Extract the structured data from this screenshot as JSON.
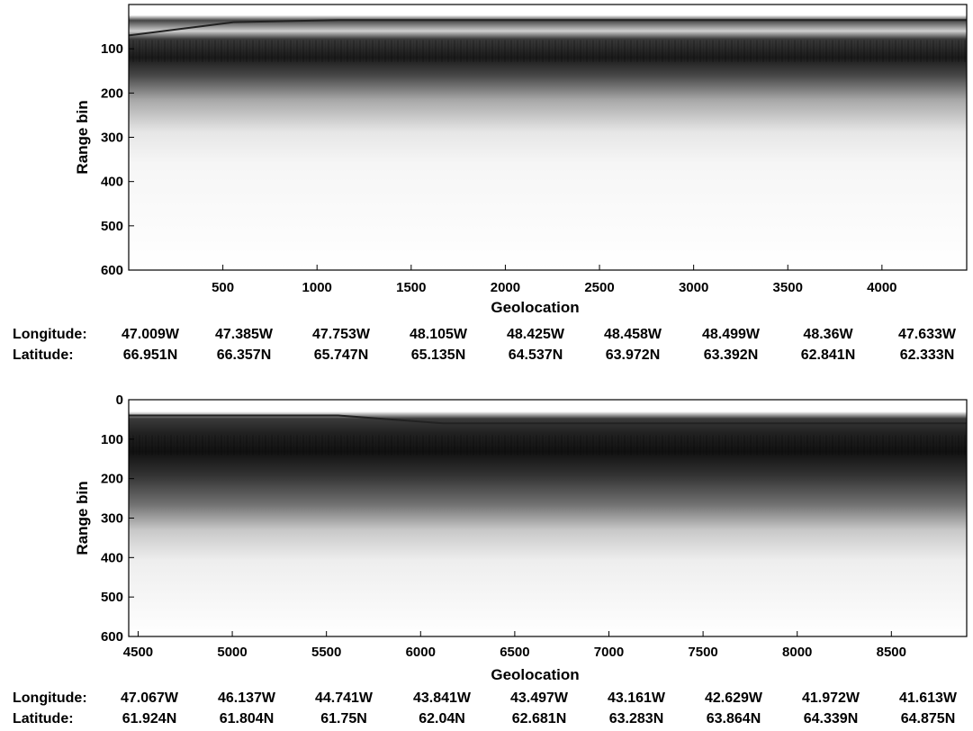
{
  "chart_data": [
    {
      "type": "heatmap",
      "xlabel": "Geolocation",
      "ylabel": "Range bin",
      "xlim": [
        0,
        4450
      ],
      "ylim": [
        600,
        0
      ],
      "xticks": [
        500,
        1000,
        1500,
        2000,
        2500,
        3000,
        3500,
        4000
      ],
      "yticks": [
        100,
        200,
        300,
        400,
        500,
        600
      ],
      "surface_bin": [
        70,
        40,
        35,
        35,
        35,
        35,
        35,
        35,
        35
      ],
      "strong_band_bins": [
        80,
        130
      ],
      "geolocation": {
        "longitude_label": "Longitude:",
        "latitude_label": "Latitude:",
        "longitude": [
          "47.009W",
          "47.385W",
          "47.753W",
          "48.105W",
          "48.425W",
          "48.458W",
          "48.499W",
          "48.36W",
          "47.633W"
        ],
        "latitude": [
          "66.951N",
          "66.357N",
          "65.747N",
          "65.135N",
          "64.537N",
          "63.972N",
          "63.392N",
          "62.841N",
          "62.333N"
        ]
      }
    },
    {
      "type": "heatmap",
      "xlabel": "Geolocation",
      "ylabel": "Range bin",
      "xlim": [
        4450,
        8900
      ],
      "ylim": [
        600,
        0
      ],
      "xticks": [
        4500,
        5000,
        5500,
        6000,
        6500,
        7000,
        7500,
        8000,
        8500
      ],
      "yticks": [
        0,
        100,
        200,
        300,
        400,
        500,
        600
      ],
      "surface_bin": [
        40,
        40,
        40,
        60,
        60,
        60,
        60,
        60,
        60
      ],
      "strong_band_bins": [
        90,
        140
      ],
      "geolocation": {
        "longitude_label": "Longitude:",
        "latitude_label": "Latitude:",
        "longitude": [
          "47.067W",
          "46.137W",
          "44.741W",
          "43.841W",
          "43.497W",
          "43.161W",
          "42.629W",
          "41.972W",
          "41.613W"
        ],
        "latitude": [
          "61.924N",
          "61.804N",
          "61.75N",
          "62.04N",
          "62.681N",
          "63.283N",
          "63.864N",
          "64.339N",
          "64.875N"
        ]
      }
    }
  ]
}
